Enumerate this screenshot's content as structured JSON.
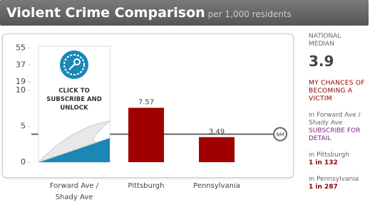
{
  "header": {
    "title": "Violent Crime Comparison",
    "subtitle": "per 1,000 residents"
  },
  "chart_data": {
    "type": "bar",
    "categories": [
      "Forward Ave / Shady Ave",
      "Pittsburgh",
      "Pennsylvania"
    ],
    "values": [
      null,
      7.57,
      3.49
    ],
    "color": "#a00000",
    "ylim": [
      0,
      55
    ],
    "yticks": [
      0,
      5,
      10,
      19,
      37,
      55
    ],
    "grid": false,
    "reference_line": {
      "label": "NM",
      "value": 3.9,
      "color": "#666666"
    }
  },
  "lock_overlay": {
    "text": "CLICK TO SUBSCRIBE AND UNLOCK"
  },
  "sidebar": {
    "national_median": {
      "label": "NATIONAL MEDIAN",
      "value": 3.9
    },
    "chances_title": "MY CHANCES OF BECOMING A VICTIM",
    "items": [
      {
        "place": "in Forward Ave / Shady Ave",
        "odds": "SUBSCRIBE FOR DETAIL"
      },
      {
        "place": "in Pittsburgh",
        "odds": "1 in 132"
      },
      {
        "place": "in Pennsylvania",
        "odds": "1 in 287"
      }
    ]
  }
}
